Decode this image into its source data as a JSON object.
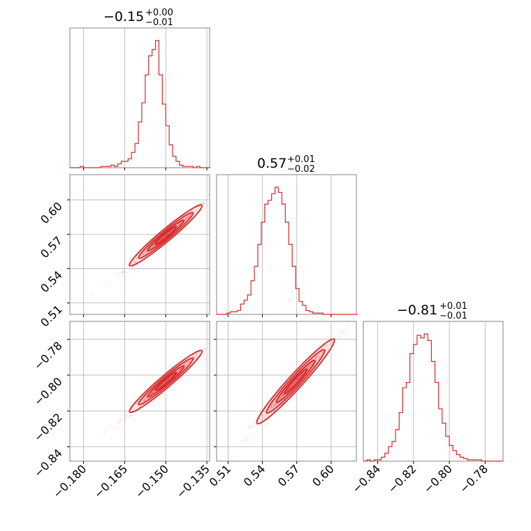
{
  "chart_data": {
    "type": "corner",
    "color": "#d62728",
    "grid": true,
    "parameters": [
      {
        "range": [
          -0.185,
          -0.134
        ],
        "ticks": [
          -0.18,
          -0.165,
          -0.15,
          -0.135
        ],
        "tick_labels": [
          "−0.180",
          "−0.165",
          "−0.150",
          "−0.135"
        ],
        "title": {
          "value": "−0.15",
          "plus": "+0.00",
          "minus": "−0.01"
        },
        "histogram": {
          "bin_start": -0.185,
          "bin_width": 0.00125,
          "counts": [
            0,
            0,
            0,
            0.01,
            0,
            0,
            0,
            0,
            0,
            0.01,
            0.01,
            0.01,
            0.02,
            0.01,
            0.03,
            0.05,
            0.05,
            0.07,
            0.12,
            0.19,
            0.36,
            0.51,
            0.73,
            0.88,
            0.93,
            1.0,
            0.73,
            0.5,
            0.33,
            0.18,
            0.09,
            0.05,
            0.02,
            0.01,
            0.01,
            0.01,
            0.0,
            0.01,
            0.0,
            0.0,
            0.0
          ]
        }
      },
      {
        "range": [
          0.5,
          0.622
        ],
        "ticks": [
          0.51,
          0.54,
          0.57,
          0.6
        ],
        "tick_labels": [
          "0.51",
          "0.54",
          "0.57",
          "0.60"
        ],
        "title": {
          "value": "0.57",
          "plus": "+0.01",
          "minus": "−0.02"
        },
        "histogram": {
          "bin_start": 0.5,
          "bin_width": 0.003,
          "counts": [
            0,
            0,
            0,
            0.01,
            0.02,
            0.02,
            0.03,
            0.08,
            0.11,
            0.15,
            0.26,
            0.37,
            0.54,
            0.71,
            0.85,
            0.88,
            0.93,
            0.98,
            0.94,
            0.85,
            0.71,
            0.54,
            0.37,
            0.2,
            0.1,
            0.07,
            0.03,
            0.02,
            0.01,
            0.01,
            0.01,
            0,
            0,
            0,
            0,
            0,
            0,
            0,
            0,
            0,
            0
          ]
        }
      },
      {
        "range": [
          -0.848,
          -0.77
        ],
        "ticks": [
          -0.84,
          -0.82,
          -0.8,
          -0.78
        ],
        "tick_labels": [
          "−0.84",
          "−0.82",
          "−0.80",
          "−0.78"
        ],
        "title": {
          "value": "−0.81",
          "plus": "+0.01",
          "minus": "−0.01"
        },
        "histogram": {
          "bin_start": -0.848,
          "bin_width": 0.002,
          "counts": [
            0,
            0.01,
            0,
            0.01,
            0.01,
            0.03,
            0.06,
            0.11,
            0.15,
            0.24,
            0.37,
            0.56,
            0.6,
            0.82,
            0.89,
            0.96,
            0.94,
            0.97,
            0.92,
            0.76,
            0.6,
            0.4,
            0.29,
            0.19,
            0.12,
            0.08,
            0.05,
            0.03,
            0.02,
            0.01,
            0.01,
            0.01,
            0.01,
            0,
            0,
            0,
            0,
            0,
            0
          ]
        }
      }
    ],
    "correlation": {
      "p0_p1": {
        "center": [
          -0.15,
          0.569
        ],
        "slope": 2.0
      },
      "p0_p2": {
        "center": [
          -0.15,
          -0.8035
        ],
        "slope": 1.3
      },
      "p1_p2": {
        "center": [
          0.569,
          -0.8035
        ],
        "slope": 0.7
      }
    }
  }
}
